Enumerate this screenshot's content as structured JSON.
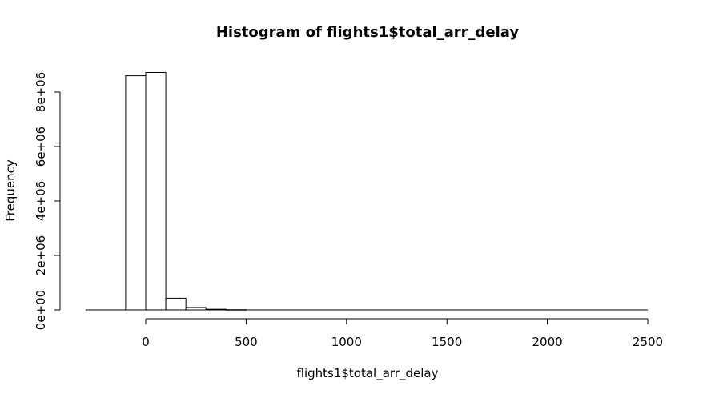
{
  "chart_data": {
    "type": "bar",
    "title": "Histogram of flights1$total_arr_delay",
    "xlabel": "flights1$total_arr_delay",
    "ylabel": "Frequency",
    "bin_width": 100,
    "bins": [
      {
        "x0": -100,
        "x1": 0,
        "count": 8600000
      },
      {
        "x0": 0,
        "x1": 100,
        "count": 8720000
      },
      {
        "x0": 100,
        "x1": 200,
        "count": 430000
      },
      {
        "x0": 200,
        "x1": 300,
        "count": 90000
      },
      {
        "x0": 300,
        "x1": 400,
        "count": 25000
      },
      {
        "x0": 400,
        "x1": 500,
        "count": 8000
      }
    ],
    "baseline_range": [
      -300,
      2500
    ],
    "xlim": [
      -300,
      2500
    ],
    "ylim": [
      0,
      9000000
    ],
    "x_ticks": [
      0,
      500,
      1000,
      1500,
      2000,
      2500
    ],
    "x_tick_labels": [
      "0",
      "500",
      "1000",
      "1500",
      "2000",
      "2500"
    ],
    "y_ticks": [
      0,
      2000000,
      4000000,
      6000000,
      8000000
    ],
    "y_tick_labels": [
      "0e+00",
      "2e+06",
      "4e+06",
      "6e+06",
      "8e+06"
    ],
    "grid": false,
    "legend": "none"
  }
}
